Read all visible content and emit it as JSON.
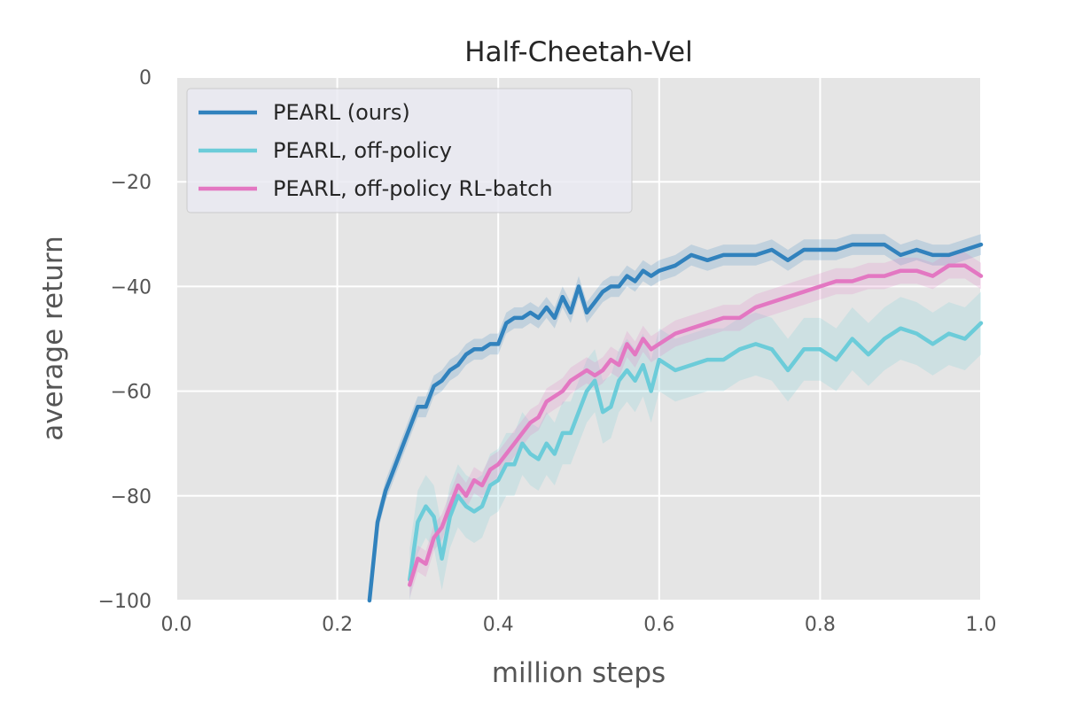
{
  "chart_data": {
    "type": "line",
    "title": "Half-Cheetah-Vel",
    "xlabel": "million steps",
    "ylabel": "average return",
    "xlim": [
      0.0,
      1.0
    ],
    "ylim": [
      -100,
      0
    ],
    "xticks": [
      "0.0",
      "0.2",
      "0.4",
      "0.6",
      "0.8",
      "1.0"
    ],
    "yticks": [
      "0",
      "−20",
      "−40",
      "−60",
      "−80",
      "−100"
    ],
    "grid": true,
    "legend_position": "upper-left",
    "series": [
      {
        "name": "PEARL (ours)",
        "color": "#3182bd",
        "x": [
          0.24,
          0.25,
          0.26,
          0.27,
          0.28,
          0.29,
          0.3,
          0.31,
          0.32,
          0.33,
          0.34,
          0.35,
          0.36,
          0.37,
          0.38,
          0.39,
          0.4,
          0.41,
          0.42,
          0.43,
          0.44,
          0.45,
          0.46,
          0.47,
          0.48,
          0.49,
          0.5,
          0.51,
          0.52,
          0.53,
          0.54,
          0.55,
          0.56,
          0.57,
          0.58,
          0.59,
          0.6,
          0.62,
          0.64,
          0.66,
          0.68,
          0.7,
          0.72,
          0.74,
          0.76,
          0.78,
          0.8,
          0.82,
          0.84,
          0.86,
          0.88,
          0.9,
          0.92,
          0.94,
          0.96,
          0.98,
          1.0
        ],
        "y": [
          -100,
          -85,
          -79,
          -75,
          -71,
          -67,
          -63,
          -63,
          -59,
          -58,
          -56,
          -55,
          -53,
          -52,
          -52,
          -51,
          -51,
          -47,
          -46,
          -46,
          -45,
          -46,
          -44,
          -46,
          -42,
          -45,
          -40,
          -45,
          -43,
          -41,
          -40,
          -40,
          -38,
          -39,
          -37,
          -38,
          -37,
          -36,
          -34,
          -35,
          -34,
          -34,
          -34,
          -33,
          -35,
          -33,
          -33,
          -33,
          -32,
          -32,
          -32,
          -34,
          -33,
          -34,
          -34,
          -33,
          -32
        ]
      },
      {
        "name": "PEARL, off-policy",
        "color": "#6cccd9",
        "x": [
          0.29,
          0.3,
          0.31,
          0.32,
          0.33,
          0.34,
          0.35,
          0.36,
          0.37,
          0.38,
          0.39,
          0.4,
          0.41,
          0.42,
          0.43,
          0.44,
          0.45,
          0.46,
          0.47,
          0.48,
          0.49,
          0.5,
          0.51,
          0.52,
          0.53,
          0.54,
          0.55,
          0.56,
          0.57,
          0.58,
          0.59,
          0.6,
          0.62,
          0.64,
          0.66,
          0.68,
          0.7,
          0.72,
          0.74,
          0.76,
          0.78,
          0.8,
          0.82,
          0.84,
          0.86,
          0.88,
          0.9,
          0.92,
          0.94,
          0.96,
          0.98,
          1.0
        ],
        "y": [
          -96,
          -85,
          -82,
          -84,
          -92,
          -84,
          -80,
          -82,
          -83,
          -82,
          -78,
          -77,
          -74,
          -74,
          -70,
          -72,
          -73,
          -70,
          -72,
          -68,
          -68,
          -64,
          -60,
          -58,
          -64,
          -63,
          -58,
          -56,
          -58,
          -55,
          -60,
          -54,
          -56,
          -55,
          -54,
          -54,
          -52,
          -51,
          -52,
          -56,
          -52,
          -52,
          -54,
          -50,
          -53,
          -50,
          -48,
          -49,
          -51,
          -49,
          -50,
          -47
        ]
      },
      {
        "name": "PEARL, off-policy RL-batch",
        "color": "#e377c2",
        "x": [
          0.29,
          0.3,
          0.31,
          0.32,
          0.33,
          0.34,
          0.35,
          0.36,
          0.37,
          0.38,
          0.39,
          0.4,
          0.41,
          0.42,
          0.43,
          0.44,
          0.45,
          0.46,
          0.47,
          0.48,
          0.49,
          0.5,
          0.51,
          0.52,
          0.53,
          0.54,
          0.55,
          0.56,
          0.57,
          0.58,
          0.59,
          0.6,
          0.62,
          0.64,
          0.66,
          0.68,
          0.7,
          0.72,
          0.74,
          0.76,
          0.78,
          0.8,
          0.82,
          0.84,
          0.86,
          0.88,
          0.9,
          0.92,
          0.94,
          0.96,
          0.98,
          1.0
        ],
        "y": [
          -97,
          -92,
          -93,
          -88,
          -86,
          -82,
          -78,
          -80,
          -77,
          -78,
          -75,
          -74,
          -72,
          -70,
          -68,
          -66,
          -65,
          -62,
          -61,
          -60,
          -58,
          -57,
          -56,
          -57,
          -56,
          -54,
          -55,
          -51,
          -53,
          -50,
          -52,
          -51,
          -49,
          -48,
          -47,
          -46,
          -46,
          -44,
          -43,
          -42,
          -41,
          -40,
          -39,
          -39,
          -38,
          -38,
          -37,
          -37,
          -38,
          -36,
          -36,
          -38
        ]
      }
    ]
  }
}
